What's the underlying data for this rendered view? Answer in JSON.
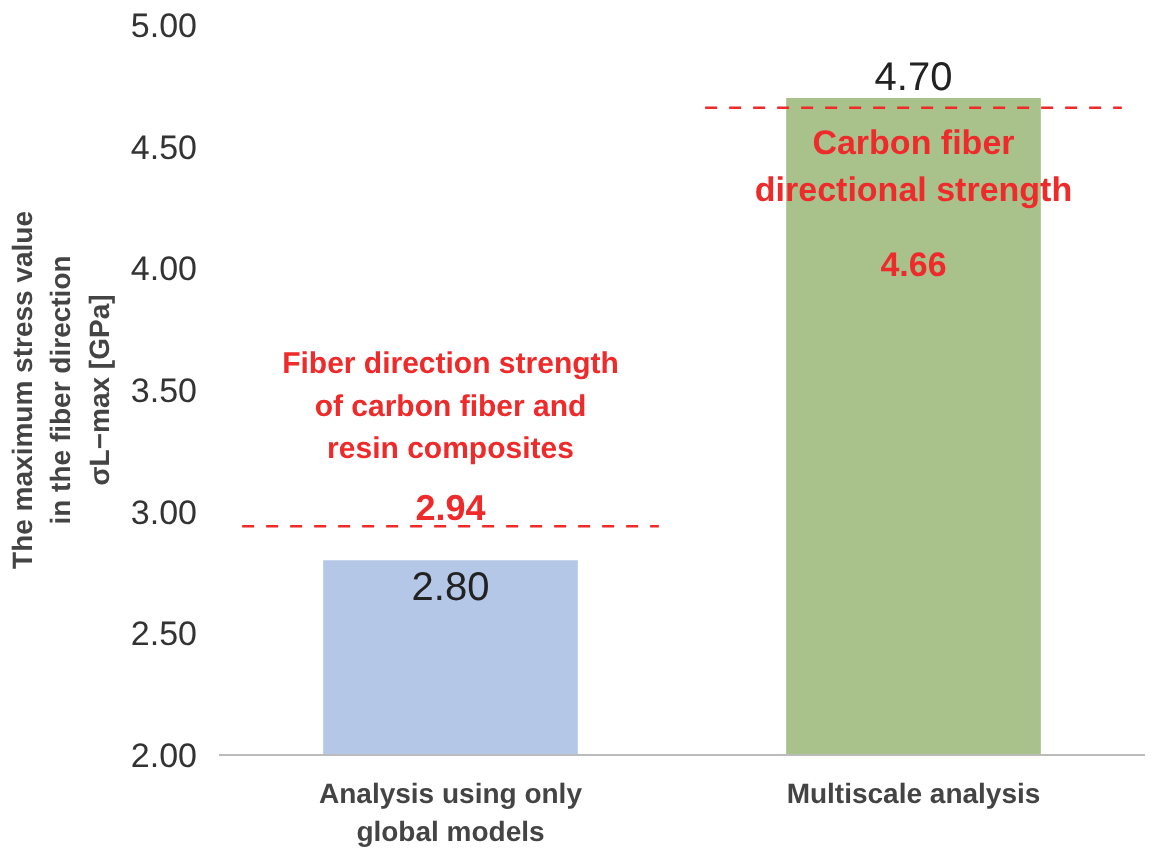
{
  "chart_data": {
    "type": "bar",
    "ylabel": "The maximum stress value in the fiber direction σL−max [GPa]",
    "categories": [
      "Analysis using only global models",
      "Multiscale analysis"
    ],
    "values": [
      2.8,
      4.7
    ],
    "value_labels": [
      "2.80",
      "4.70"
    ],
    "colors": [
      "#b4c7e7",
      "#a9c18b"
    ],
    "ylim": [
      2.0,
      5.0
    ],
    "yticks": [
      {
        "value": 2.0,
        "label": "2.00"
      },
      {
        "value": 2.5,
        "label": "2.50"
      },
      {
        "value": 3.0,
        "label": "3.00"
      },
      {
        "value": 3.5,
        "label": "3.50"
      },
      {
        "value": 4.0,
        "label": "4.00"
      },
      {
        "value": 4.5,
        "label": "4.50"
      },
      {
        "value": 5.0,
        "label": "5.00"
      }
    ],
    "ref_lines": [
      {
        "axis": "y",
        "value": 2.94,
        "label": "2.94",
        "color": "#ee2a2a",
        "line_style": "dashed"
      },
      {
        "axis": "y",
        "value": 4.66,
        "label": "4.66",
        "color": "#ee2a2a",
        "line_style": "dashed"
      }
    ],
    "annotations": [
      {
        "text": "Fiber direction strength of carbon fiber and resin composites",
        "x": "Analysis using only global models",
        "y": 2.94
      },
      {
        "text": "Carbon fiber directional strength",
        "x": "Multiscale analysis",
        "y": 4.66
      }
    ],
    "grid": false
  }
}
